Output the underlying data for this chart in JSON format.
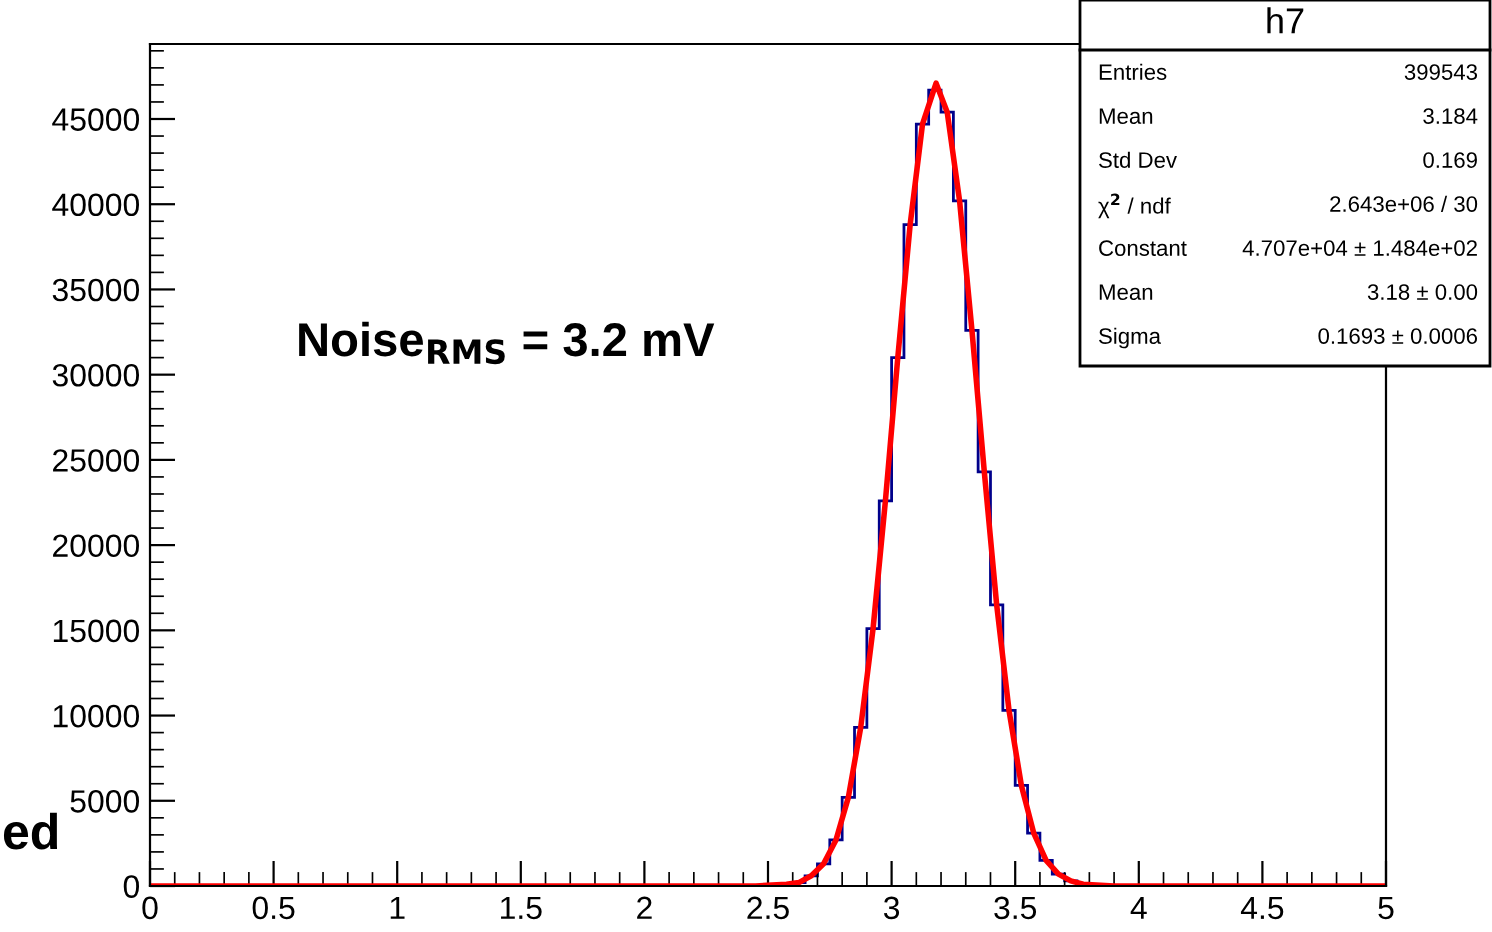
{
  "chart_data": {
    "type": "histogram",
    "bins": [
      0,
      0.05,
      0.1,
      0.15,
      0.2,
      0.25,
      0.3,
      0.35,
      0.4,
      0.45,
      0.5,
      0.55,
      0.6,
      0.65,
      0.7,
      0.75,
      0.8,
      0.85,
      0.9,
      0.95,
      1,
      1.05,
      1.1,
      1.15,
      1.2,
      1.25,
      1.3,
      1.35,
      1.4,
      1.45,
      1.5,
      1.55,
      1.6,
      1.65,
      1.7,
      1.75,
      1.8,
      1.85,
      1.9,
      1.95,
      2,
      2.05,
      2.1,
      2.15,
      2.2,
      2.25,
      2.3,
      2.35,
      2.4,
      2.45,
      2.5,
      2.55,
      2.6,
      2.65,
      2.7,
      2.75,
      2.8,
      2.85,
      2.9,
      2.95,
      3,
      3.05,
      3.1,
      3.15,
      3.2,
      3.25,
      3.3,
      3.35,
      3.4,
      3.45,
      3.5,
      3.55,
      3.6,
      3.65,
      3.7,
      3.75,
      3.8,
      3.85,
      3.9,
      3.95,
      4,
      4.05,
      4.1,
      4.15,
      4.2,
      4.25,
      4.3,
      4.35,
      4.4,
      4.45,
      4.5,
      4.55,
      4.6,
      4.65,
      4.7,
      4.75,
      4.8,
      4.85,
      4.9,
      4.95,
      5
    ],
    "series": [
      {
        "color": "#00008b",
        "values": [
          0,
          0,
          0,
          0,
          0,
          0,
          0,
          0,
          0,
          0,
          0,
          0,
          0,
          0,
          0,
          0,
          0,
          0,
          0,
          0,
          0,
          0,
          0,
          0,
          0,
          0,
          0,
          0,
          0,
          0,
          0,
          0,
          0,
          0,
          0,
          0,
          0,
          0,
          0,
          0,
          0,
          0,
          0,
          0,
          0,
          0,
          0,
          0,
          0,
          0,
          0,
          100,
          200,
          600,
          1300,
          2700,
          5200,
          9300,
          15100,
          22600,
          31000,
          38800,
          44700,
          46700,
          45400,
          40200,
          32600,
          24300,
          16500,
          10300,
          5900,
          3100,
          1500,
          700,
          300,
          100,
          0,
          0,
          0,
          0,
          0,
          0,
          0,
          0,
          0,
          0,
          0,
          0,
          0,
          0,
          0,
          0,
          0,
          0,
          0,
          0,
          0,
          0,
          0,
          0
        ]
      },
      {
        "type": "line",
        "color": "#ff0000",
        "x": [
          0,
          2.45,
          2.575,
          2.625,
          2.675,
          2.725,
          2.775,
          2.825,
          2.875,
          2.925,
          2.975,
          3.025,
          3.075,
          3.125,
          3.18,
          3.225,
          3.275,
          3.325,
          3.375,
          3.425,
          3.475,
          3.525,
          3.575,
          3.625,
          3.675,
          3.725,
          3.775,
          3.9,
          5
        ],
        "values": [
          0,
          0,
          100,
          200,
          600,
          1300,
          2700,
          5200,
          9300,
          15100,
          22600,
          31000,
          38800,
          44700,
          47100,
          45400,
          40200,
          32600,
          24300,
          16500,
          10300,
          5900,
          3100,
          1500,
          700,
          300,
          100,
          0,
          0
        ]
      }
    ],
    "xlim": [
      0,
      5
    ],
    "xticks": [
      0,
      0.5,
      1,
      1.5,
      2,
      2.5,
      3,
      3.5,
      4,
      4.5,
      5
    ],
    "ylim": [
      0,
      49400
    ],
    "yticks": [
      0,
      5000,
      10000,
      15000,
      20000,
      25000,
      30000,
      35000,
      40000,
      45000
    ],
    "grid": false,
    "legend": false,
    "annotations": [
      "h7",
      "Entries",
      "399543",
      "Mean",
      "3.184",
      "Std Dev",
      "0.169",
      "χ$^{2}$ / ndf",
      "2.643e+06 / 30",
      "Constant",
      "4.707e+04 ± 1.484e+02",
      "Mean",
      "3.18 ± 0.00",
      "Sigma",
      "0.1693 ± 0.0006",
      "Noise$_{RMS}$ = 3.2 mV",
      "ed"
    ]
  }
}
